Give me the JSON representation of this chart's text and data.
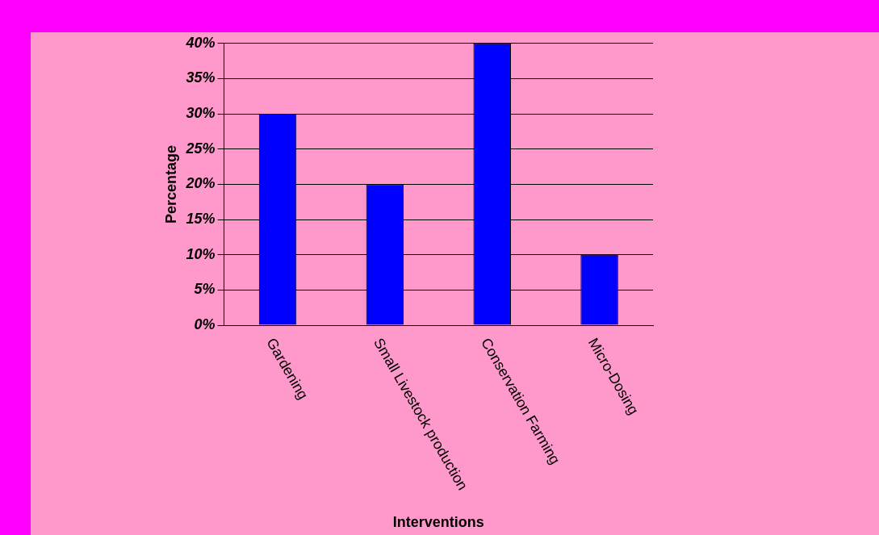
{
  "chart_data": {
    "type": "bar",
    "xlabel": "Interventions",
    "ylabel": "Percentage",
    "categories": [
      "Gardening",
      "Small Livestock production",
      "Conservation Farming",
      "Micro-Dosing"
    ],
    "values": [
      30,
      20,
      40,
      10
    ],
    "color": "#0000ff",
    "ylim": [
      0,
      40
    ],
    "yticks": [
      {
        "value": 0,
        "label": "0%"
      },
      {
        "value": 5,
        "label": "5%"
      },
      {
        "value": 10,
        "label": "10%"
      },
      {
        "value": 15,
        "label": "15%"
      },
      {
        "value": 20,
        "label": "20%"
      },
      {
        "value": 25,
        "label": "25%"
      },
      {
        "value": 30,
        "label": "30%"
      },
      {
        "value": 35,
        "label": "35%"
      },
      {
        "value": 40,
        "label": "40%"
      }
    ],
    "grid": "y",
    "legend": false
  }
}
